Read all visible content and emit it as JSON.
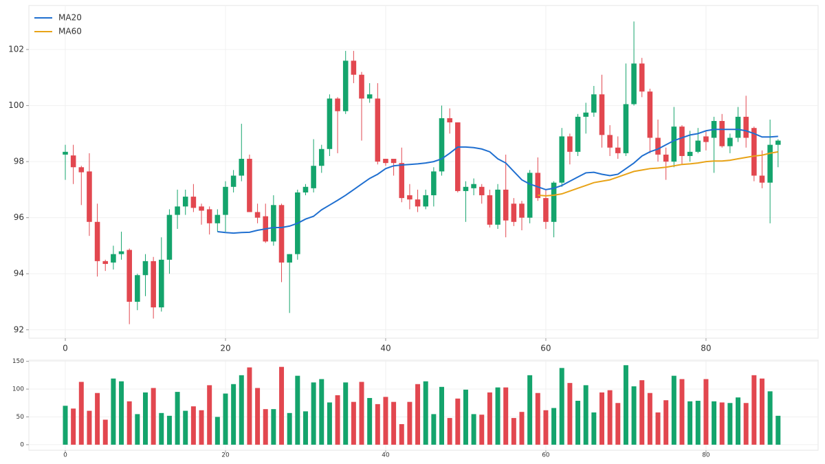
{
  "chart_data": [
    {
      "type": "candlestick",
      "x": [
        0,
        1,
        2,
        3,
        4,
        5,
        6,
        7,
        8,
        9,
        10,
        11,
        12,
        13,
        14,
        15,
        16,
        17,
        18,
        19,
        20,
        21,
        22,
        23,
        24,
        25,
        26,
        27,
        28,
        29,
        30,
        31,
        32,
        33,
        34,
        35,
        36,
        37,
        38,
        39,
        40,
        41,
        42,
        43,
        44,
        45,
        46,
        47,
        48,
        49,
        50,
        51,
        52,
        53,
        54,
        55,
        56,
        57,
        58,
        59,
        60,
        61,
        62,
        63,
        64,
        65,
        66,
        67,
        68,
        69,
        70,
        71,
        72,
        73,
        74,
        75,
        76,
        77,
        78,
        79,
        80,
        81,
        82,
        83,
        84,
        85,
        86,
        87,
        88,
        89
      ],
      "open": [
        98.25,
        98.22,
        97.8,
        97.65,
        95.85,
        94.45,
        94.4,
        94.7,
        94.85,
        93.0,
        93.95,
        94.45,
        92.8,
        94.5,
        96.1,
        96.4,
        96.75,
        96.4,
        96.3,
        95.8,
        96.1,
        97.1,
        97.5,
        98.1,
        96.2,
        96.05,
        95.15,
        96.45,
        94.4,
        94.7,
        96.9,
        97.05,
        97.85,
        98.45,
        100.25,
        99.8,
        101.6,
        101.1,
        100.25,
        100.25,
        98.1,
        98.1,
        97.95,
        96.8,
        96.65,
        96.4,
        96.8,
        97.65,
        99.55,
        99.4,
        96.95,
        97.05,
        97.1,
        96.8,
        95.75,
        97.0,
        96.5,
        96.5,
        96.0,
        97.6,
        96.7,
        95.85,
        97.25,
        98.9,
        98.35,
        99.6,
        99.75,
        100.4,
        98.95,
        98.5,
        98.3,
        100.05,
        101.5,
        100.5,
        98.85,
        98.25,
        98.0,
        99.25,
        98.2,
        98.35,
        98.9,
        98.85,
        99.45,
        98.55,
        98.85,
        99.6,
        99.2,
        97.5,
        97.25,
        98.6
      ],
      "high": [
        98.6,
        98.6,
        97.85,
        98.3,
        96.5,
        94.5,
        95.0,
        95.5,
        94.9,
        94.0,
        94.7,
        94.6,
        95.3,
        96.3,
        97.0,
        97.0,
        97.2,
        96.5,
        96.4,
        96.3,
        97.3,
        97.7,
        99.35,
        98.25,
        96.5,
        96.5,
        96.8,
        96.5,
        94.7,
        97.0,
        97.2,
        98.8,
        98.6,
        100.4,
        100.3,
        101.95,
        101.95,
        101.2,
        100.8,
        100.8,
        98.1,
        98.0,
        98.5,
        97.2,
        97.0,
        97.0,
        97.8,
        100.0,
        99.9,
        99.4,
        97.3,
        97.4,
        97.2,
        97.0,
        97.2,
        98.25,
        96.7,
        96.6,
        97.7,
        98.15,
        97.0,
        97.3,
        99.2,
        99.0,
        99.7,
        100.1,
        100.7,
        101.1,
        99.3,
        98.9,
        101.5,
        103.0,
        101.7,
        100.6,
        99.5,
        98.5,
        99.95,
        99.3,
        99.1,
        99.2,
        99.1,
        99.6,
        99.7,
        99.0,
        99.95,
        100.35,
        99.25,
        98.4,
        99.5,
        98.8
      ],
      "low": [
        97.35,
        97.2,
        96.45,
        95.35,
        93.9,
        94.1,
        94.15,
        94.5,
        92.2,
        92.7,
        93.2,
        92.4,
        92.65,
        94.0,
        95.6,
        96.1,
        96.2,
        95.75,
        95.4,
        95.5,
        95.5,
        96.9,
        97.3,
        96.2,
        95.8,
        95.1,
        95.0,
        93.7,
        92.6,
        94.5,
        96.8,
        96.9,
        97.6,
        98.2,
        98.3,
        99.7,
        100.8,
        98.75,
        100.1,
        97.9,
        97.85,
        97.5,
        96.55,
        96.3,
        96.2,
        96.3,
        96.4,
        97.5,
        99.0,
        96.9,
        95.85,
        96.8,
        96.5,
        95.65,
        95.6,
        95.3,
        95.7,
        95.55,
        95.8,
        96.6,
        95.6,
        95.3,
        97.1,
        97.9,
        98.2,
        99.0,
        99.6,
        98.5,
        98.2,
        98.1,
        98.2,
        100.0,
        100.3,
        98.3,
        98.0,
        97.35,
        97.8,
        97.9,
        98.0,
        98.3,
        98.4,
        97.6,
        98.5,
        98.3,
        98.7,
        98.5,
        97.3,
        97.05,
        95.8,
        97.8
      ],
      "close": [
        98.35,
        97.8,
        97.62,
        95.85,
        94.45,
        94.35,
        94.7,
        94.8,
        93.0,
        93.95,
        94.45,
        92.8,
        94.5,
        96.1,
        96.4,
        96.75,
        96.35,
        96.25,
        95.8,
        96.1,
        97.1,
        97.5,
        98.1,
        96.2,
        96.0,
        95.15,
        96.45,
        94.4,
        94.7,
        96.9,
        97.1,
        97.85,
        98.45,
        100.25,
        99.8,
        101.6,
        101.1,
        100.25,
        100.4,
        98.0,
        97.95,
        97.95,
        96.7,
        96.65,
        96.4,
        96.8,
        97.65,
        99.55,
        99.4,
        96.95,
        97.1,
        97.2,
        96.8,
        95.75,
        97.0,
        95.9,
        95.85,
        96.0,
        97.6,
        96.7,
        95.85,
        97.25,
        98.9,
        98.35,
        99.6,
        99.75,
        100.4,
        98.95,
        98.5,
        98.3,
        100.05,
        101.5,
        100.5,
        98.85,
        98.25,
        98.0,
        99.25,
        98.2,
        98.35,
        98.75,
        98.7,
        99.45,
        98.55,
        98.85,
        99.6,
        98.85,
        97.5,
        97.25,
        98.6,
        98.75
      ],
      "up_color": "#14a46c",
      "down_color": "#e2474f",
      "series": [
        {
          "name": "MA20",
          "color": "#1f6fd0",
          "values": [
            null,
            null,
            null,
            null,
            null,
            null,
            null,
            null,
            null,
            null,
            null,
            null,
            null,
            null,
            null,
            null,
            null,
            null,
            null,
            95.5,
            95.47,
            95.45,
            95.47,
            95.48,
            95.55,
            95.6,
            95.65,
            95.65,
            95.7,
            95.8,
            95.95,
            96.05,
            96.28,
            96.45,
            96.62,
            96.8,
            97.0,
            97.2,
            97.4,
            97.55,
            97.75,
            97.85,
            97.88,
            97.9,
            97.92,
            97.95,
            98.0,
            98.1,
            98.3,
            98.52,
            98.52,
            98.5,
            98.45,
            98.35,
            98.1,
            97.95,
            97.65,
            97.35,
            97.2,
            97.1,
            97.0,
            97.05,
            97.15,
            97.3,
            97.45,
            97.6,
            97.62,
            97.55,
            97.5,
            97.55,
            97.75,
            97.95,
            98.2,
            98.35,
            98.45,
            98.6,
            98.75,
            98.85,
            98.95,
            99.0,
            99.1,
            99.15,
            99.15,
            99.15,
            99.15,
            99.1,
            99.0,
            98.88,
            98.88,
            98.9
          ]
        },
        {
          "name": "MA60",
          "color": "#e8a317",
          "values": [
            null,
            null,
            null,
            null,
            null,
            null,
            null,
            null,
            null,
            null,
            null,
            null,
            null,
            null,
            null,
            null,
            null,
            null,
            null,
            null,
            null,
            null,
            null,
            null,
            null,
            null,
            null,
            null,
            null,
            null,
            null,
            null,
            null,
            null,
            null,
            null,
            null,
            null,
            null,
            null,
            null,
            null,
            null,
            null,
            null,
            null,
            null,
            null,
            null,
            null,
            null,
            null,
            null,
            null,
            null,
            null,
            null,
            null,
            null,
            96.8,
            96.78,
            96.8,
            96.85,
            96.95,
            97.05,
            97.15,
            97.25,
            97.3,
            97.35,
            97.45,
            97.55,
            97.65,
            97.7,
            97.75,
            97.77,
            97.8,
            97.85,
            97.9,
            97.92,
            97.95,
            98.0,
            98.02,
            98.02,
            98.05,
            98.1,
            98.15,
            98.2,
            98.23,
            98.3,
            98.35
          ]
        }
      ],
      "xlim": [
        -4.55,
        94
      ],
      "xticks": [
        0,
        20,
        40,
        60,
        80
      ],
      "ylim": [
        91.7,
        103.57
      ],
      "yticks": [
        92,
        94,
        96,
        98,
        100,
        102
      ],
      "grid": true,
      "legend": "upper left"
    },
    {
      "type": "bar",
      "values": [
        70,
        65,
        113,
        61,
        93,
        45,
        119,
        114,
        78,
        55,
        94,
        102,
        57,
        52,
        95,
        61,
        69,
        62,
        107,
        50,
        92,
        109,
        125,
        139,
        102,
        64,
        64,
        140,
        57,
        124,
        60,
        112,
        118,
        76,
        89,
        112,
        77,
        113,
        84,
        73,
        86,
        77,
        37,
        77,
        109,
        114,
        55,
        104,
        48,
        83,
        99,
        55,
        54,
        94,
        103,
        103,
        48,
        59,
        125,
        93,
        62,
        66,
        138,
        111,
        79,
        107,
        58,
        94,
        98,
        75,
        143,
        105,
        116,
        93,
        58,
        80,
        124,
        118,
        78,
        79,
        118,
        78,
        76,
        75,
        85,
        75,
        125,
        119,
        96,
        52
      ],
      "xlim": [
        -4.55,
        94
      ],
      "xticks": [
        0,
        20,
        40,
        60,
        80
      ],
      "ylim": [
        -10,
        152
      ],
      "yticks": [
        0,
        50,
        100,
        150
      ],
      "grid": true
    }
  ]
}
